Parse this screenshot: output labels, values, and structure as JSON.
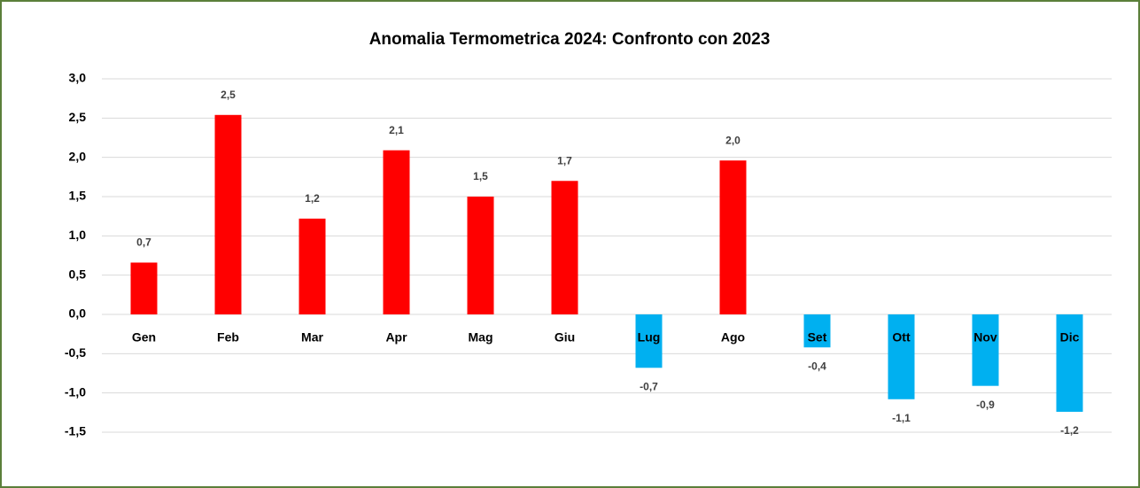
{
  "chart_data": {
    "type": "bar",
    "title": "Anomalia Termometrica 2024: Confronto con 2023",
    "categories": [
      "Gen",
      "Feb",
      "Mar",
      "Apr",
      "Mag",
      "Giu",
      "Lug",
      "Ago",
      "Set",
      "Ott",
      "Nov",
      "Dic"
    ],
    "values": [
      0.66,
      2.54,
      1.22,
      2.09,
      1.5,
      1.7,
      -0.68,
      1.96,
      -0.42,
      -1.08,
      -0.91,
      -1.24
    ],
    "value_labels": [
      "0,7",
      "2,5",
      "1,2",
      "2,1",
      "1,5",
      "1,7",
      "-0,7",
      "2,0",
      "-0,4",
      "-1,1",
      "-0,9",
      "-1,2"
    ],
    "positive_color": "#ff0000",
    "negative_color": "#00b0f0",
    "ylim": [
      -1.5,
      3.0
    ],
    "yticks": [
      {
        "value": -1.5,
        "label": "-1,5"
      },
      {
        "value": -1.0,
        "label": "-1,0"
      },
      {
        "value": -0.5,
        "label": "-0,5"
      },
      {
        "value": 0,
        "label": "0,0"
      },
      {
        "value": 0.5,
        "label": "0,5"
      },
      {
        "value": 1.0,
        "label": "1,0"
      },
      {
        "value": 1.5,
        "label": "1,5"
      },
      {
        "value": 2.0,
        "label": "2,0"
      },
      {
        "value": 2.5,
        "label": "2,5"
      },
      {
        "value": 3.0,
        "label": "3,0"
      }
    ],
    "grid": true
  }
}
